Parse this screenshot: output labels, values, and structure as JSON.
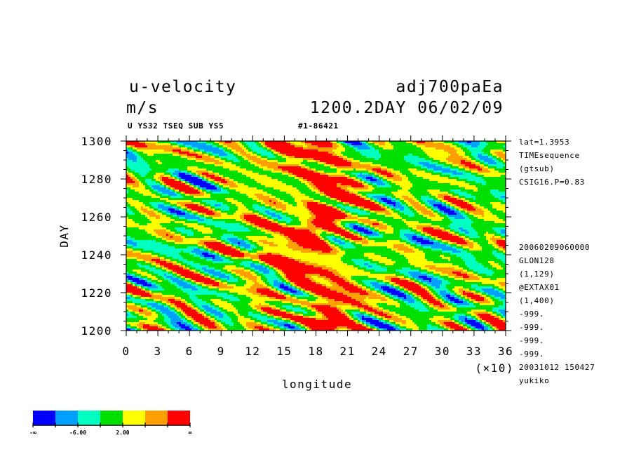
{
  "header": {
    "variable": "u-velocity",
    "units": "m/s",
    "dataset": "adj700paEa",
    "time_label": "1200.2DAY 06/02/09",
    "subinfo_left": "U YS32 TSEQ SUB YS5",
    "subinfo_right": "#1-86421"
  },
  "side_info": {
    "top": [
      "lat=1.3953",
      "TIMEsequence",
      "(gtsub)",
      "CSIG16.P=0.83"
    ],
    "bottom": [
      "20060209060000",
      "GLON128",
      "(1,129)",
      "@EXTAX01",
      "(1,400)",
      "-999.",
      "-999.",
      "-999.",
      "-999.",
      "20031012 150427",
      "yukiko"
    ]
  },
  "chart_data": {
    "type": "heatmap",
    "title": "u-velocity",
    "xlabel": "longitude",
    "ylabel": "DAY",
    "x_unit_label": "(×10)",
    "xlim": [
      0,
      36
    ],
    "ylim": [
      1200,
      1300
    ],
    "x_ticks": [
      "0",
      "3",
      "6",
      "9",
      "12",
      "15",
      "18",
      "21",
      "24",
      "27",
      "30",
      "33",
      "36"
    ],
    "y_ticks": [
      "1200",
      "1220",
      "1240",
      "1260",
      "1280",
      "1300"
    ],
    "levels": [
      -6.0,
      2.0
    ],
    "colorbar": {
      "colors": [
        "#0000ff",
        "#00a0ff",
        "#00ffc0",
        "#00e000",
        "#ffff00",
        "#ffa000",
        "#ff0000"
      ],
      "labels": [
        "-∞",
        "-6.00",
        "2.00",
        "∞"
      ]
    },
    "notes": "Hovmoller diagram: band of high u-velocity (red) centred near longitude 16-21 (×10) across days 1200-1300; blue streaks of low values elsewhere."
  }
}
